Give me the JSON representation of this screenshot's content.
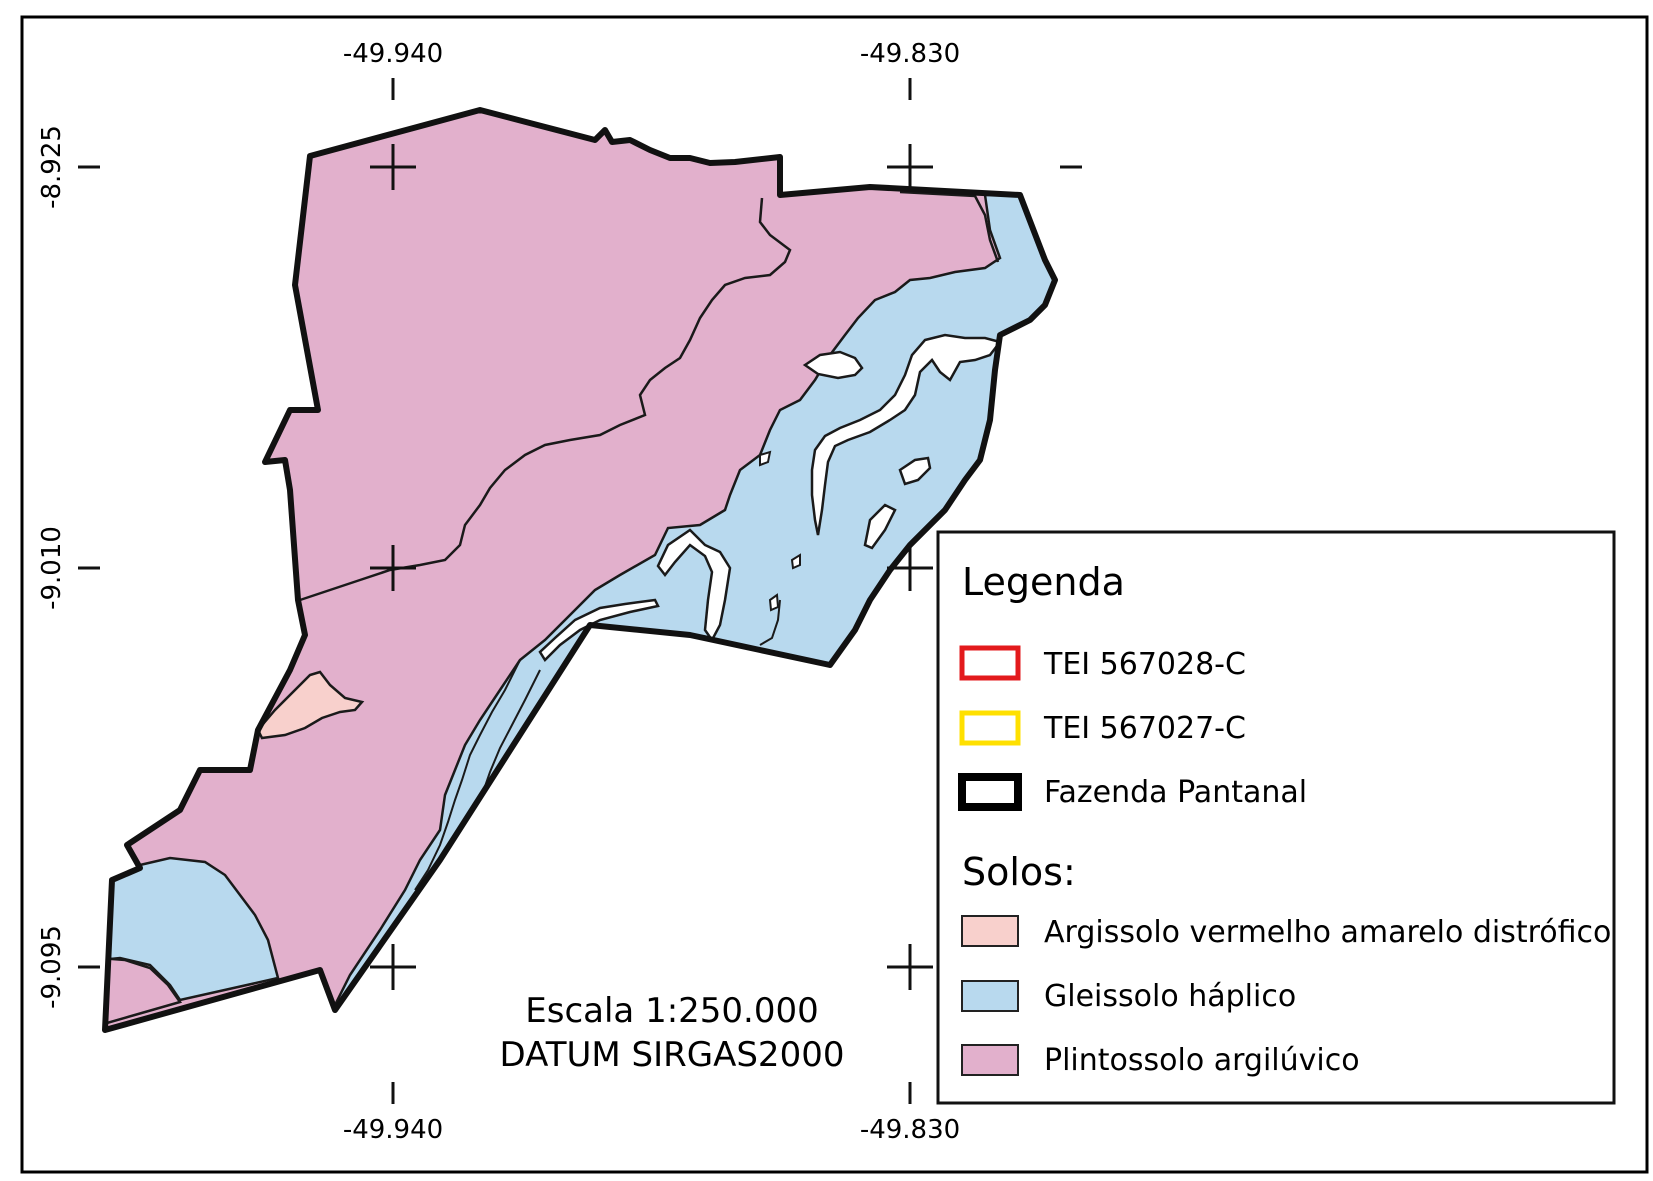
{
  "map": {
    "colors": {
      "argissolo": "#f8d0cc",
      "gleissolo": "#b8d9ee",
      "plintossolo": "#e2b0cc",
      "tei_567028": "#e31a1c",
      "tei_567027": "#ffe000",
      "fazenda": "#000000"
    },
    "grid": {
      "lon_top": [
        "-49.940",
        "-49.830"
      ],
      "lon_bottom": [
        "-49.940",
        "-49.830"
      ],
      "lat_left": [
        "-8.925",
        "-9.010",
        "-9.095"
      ]
    },
    "legend": {
      "title": "Legenda",
      "items": [
        {
          "label": "TEI 567028-C",
          "style": "outline",
          "color": "#e31a1c"
        },
        {
          "label": "TEI 567027-C",
          "style": "outline",
          "color": "#ffe000"
        },
        {
          "label": "Fazenda Pantanal",
          "style": "outline-thick",
          "color": "#000000"
        }
      ],
      "soils_title": "Solos:",
      "soils": [
        {
          "label": "Argissolo vermelho amarelo distrófico",
          "color": "#f8d0cc"
        },
        {
          "label": "Gleissolo háplico",
          "color": "#b8d9ee"
        },
        {
          "label": "Plintossolo argilúvico",
          "color": "#e2b0cc"
        }
      ]
    },
    "scale": {
      "line1": "Escala 1:250.000",
      "line2": "DATUM SIRGAS2000"
    }
  }
}
